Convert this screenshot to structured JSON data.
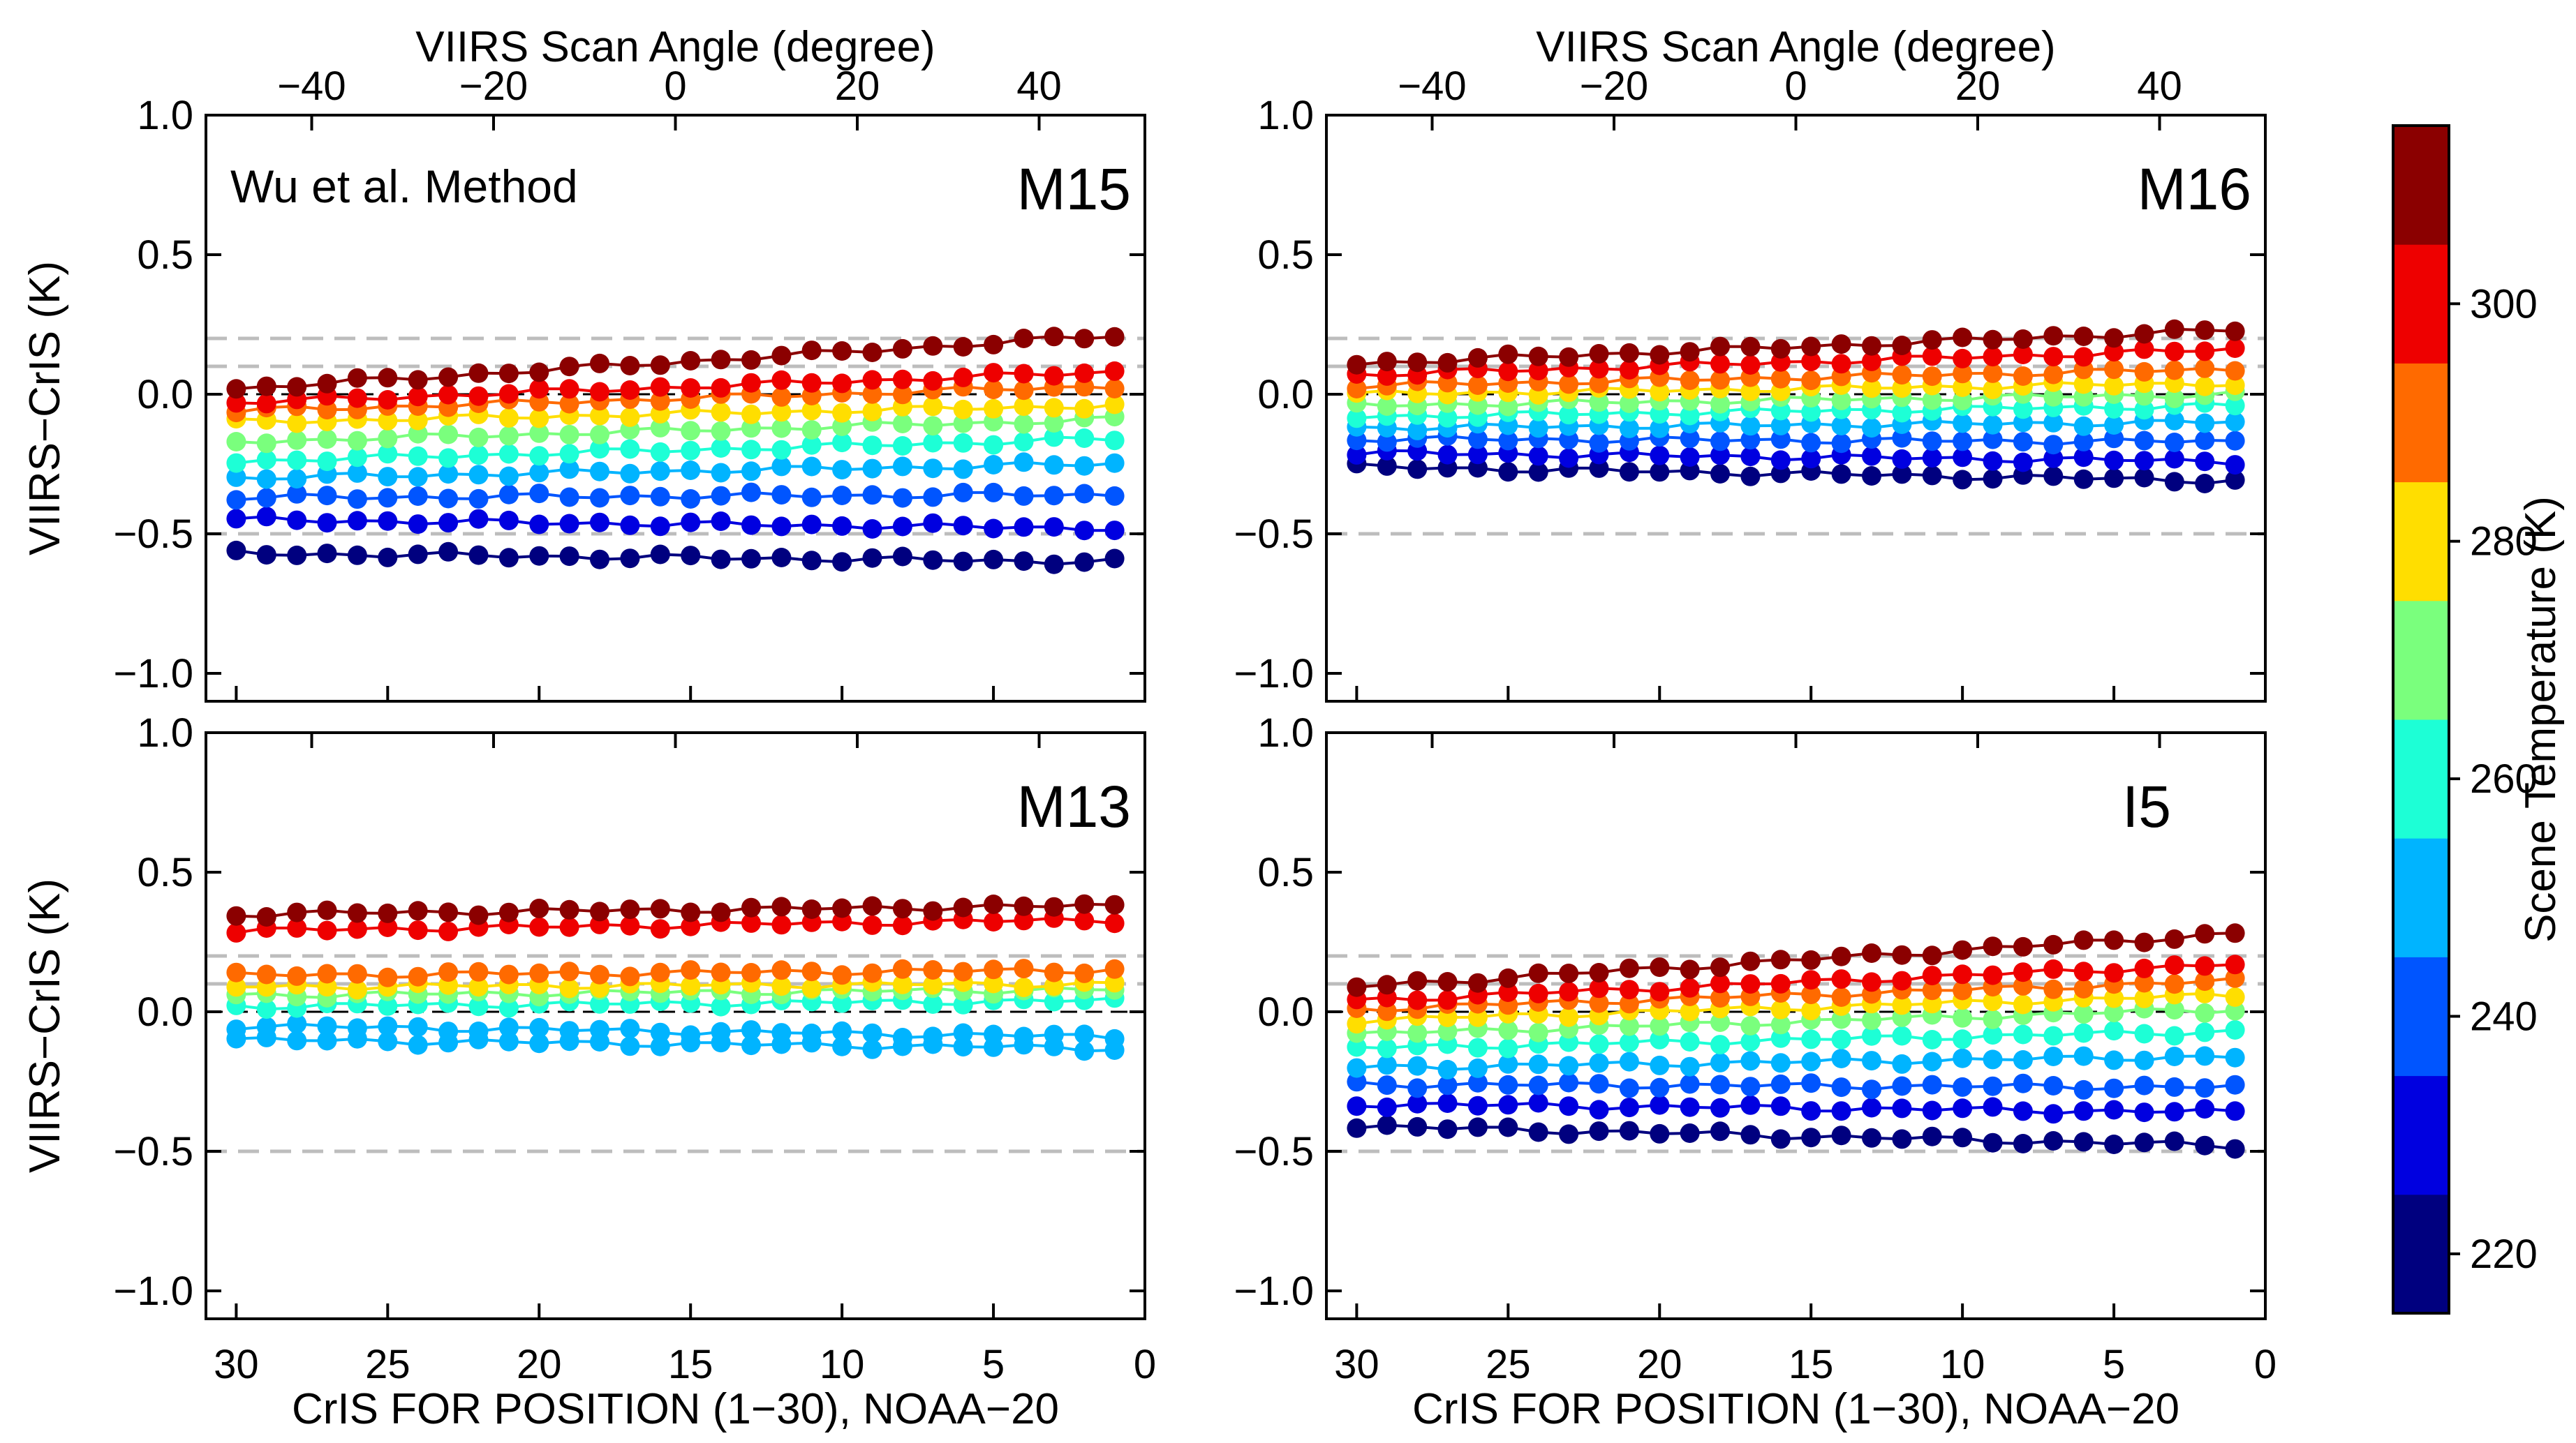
{
  "chart_data": {
    "type": "line",
    "figure_note": "Four panels, NOAA-20 VIIRS minus CrIS brightness temperature difference vs CrIS FOR position, color-coded by scene temperature",
    "top_axis_label": "VIIRS Scan Angle (degree)",
    "top_axis_ticks": [
      "−40",
      "−20",
      "0",
      "20",
      "40"
    ],
    "top_axis_tick_values": [
      -40,
      -20,
      0,
      20,
      40
    ],
    "x_label": "CrIS FOR POSITION (1−30), NOAA−20",
    "x_ticks": [
      "30",
      "25",
      "20",
      "15",
      "10",
      "5",
      "0"
    ],
    "x_tick_values": [
      30,
      25,
      20,
      15,
      10,
      5,
      0
    ],
    "xlim": [
      31,
      0
    ],
    "y_label": "VIIRS−CrIS (K)",
    "y_ticks": [
      "1.0",
      "0.5",
      "0.0",
      "−0.5",
      "−1.0"
    ],
    "y_tick_values": [
      1.0,
      0.5,
      0.0,
      -0.5,
      -1.0
    ],
    "ylim": [
      -1.1,
      1.0
    ],
    "reference_lines": [
      0.2,
      0.1,
      -0.5
    ],
    "method_label": "Wu et al. Method",
    "colorbar": {
      "label": "Scene Temperature (K)",
      "ticks": [
        "220",
        "240",
        "260",
        "280",
        "300"
      ],
      "tick_values": [
        220,
        240,
        260,
        280,
        300
      ],
      "range": [
        215,
        315
      ],
      "colors": [
        "#00007f",
        "#0000e0",
        "#0055ff",
        "#00b4ff",
        "#1dffd6",
        "#7aff7d",
        "#ffde00",
        "#ff6a00",
        "#ee0000",
        "#8b0000"
      ]
    },
    "panels": [
      {
        "label": "M15",
        "series": [
          {
            "temp": 220,
            "start": -0.57,
            "end": -0.6
          },
          {
            "temp": 230,
            "start": -0.45,
            "end": -0.48
          },
          {
            "temp": 240,
            "start": -0.37,
            "end": -0.36
          },
          {
            "temp": 250,
            "start": -0.3,
            "end": -0.25
          },
          {
            "temp": 260,
            "start": -0.24,
            "end": -0.16
          },
          {
            "temp": 270,
            "start": -0.17,
            "end": -0.09
          },
          {
            "temp": 280,
            "start": -0.1,
            "end": -0.04
          },
          {
            "temp": 290,
            "start": -0.06,
            "end": 0.03
          },
          {
            "temp": 300,
            "start": -0.03,
            "end": 0.08
          },
          {
            "temp": 310,
            "start": 0.02,
            "end": 0.21
          }
        ]
      },
      {
        "label": "M16",
        "series": [
          {
            "temp": 220,
            "start": -0.26,
            "end": -0.31
          },
          {
            "temp": 230,
            "start": -0.21,
            "end": -0.24
          },
          {
            "temp": 240,
            "start": -0.16,
            "end": -0.17
          },
          {
            "temp": 250,
            "start": -0.12,
            "end": -0.1
          },
          {
            "temp": 260,
            "start": -0.08,
            "end": -0.04
          },
          {
            "temp": 270,
            "start": -0.04,
            "end": 0.0
          },
          {
            "temp": 280,
            "start": 0.0,
            "end": 0.04
          },
          {
            "temp": 290,
            "start": 0.03,
            "end": 0.09
          },
          {
            "temp": 300,
            "start": 0.07,
            "end": 0.16
          },
          {
            "temp": 310,
            "start": 0.11,
            "end": 0.23
          }
        ]
      },
      {
        "label": "M13",
        "series": [
          {
            "temp": 245,
            "start": -0.1,
            "end": -0.13
          },
          {
            "temp": 250,
            "start": -0.05,
            "end": -0.09
          },
          {
            "temp": 260,
            "start": 0.02,
            "end": 0.04
          },
          {
            "temp": 270,
            "start": 0.06,
            "end": 0.08
          },
          {
            "temp": 280,
            "start": 0.09,
            "end": 0.1
          },
          {
            "temp": 290,
            "start": 0.13,
            "end": 0.15
          },
          {
            "temp": 300,
            "start": 0.29,
            "end": 0.33
          },
          {
            "temp": 310,
            "start": 0.35,
            "end": 0.38
          }
        ]
      },
      {
        "label": "I5",
        "series": [
          {
            "temp": 220,
            "start": -0.41,
            "end": -0.48
          },
          {
            "temp": 230,
            "start": -0.33,
            "end": -0.36
          },
          {
            "temp": 240,
            "start": -0.26,
            "end": -0.27
          },
          {
            "temp": 250,
            "start": -0.2,
            "end": -0.16
          },
          {
            "temp": 260,
            "start": -0.13,
            "end": -0.07
          },
          {
            "temp": 270,
            "start": -0.08,
            "end": 0.01
          },
          {
            "temp": 280,
            "start": -0.03,
            "end": 0.06
          },
          {
            "temp": 290,
            "start": 0.01,
            "end": 0.11
          },
          {
            "temp": 300,
            "start": 0.04,
            "end": 0.17
          },
          {
            "temp": 310,
            "start": 0.09,
            "end": 0.28
          }
        ]
      }
    ]
  }
}
